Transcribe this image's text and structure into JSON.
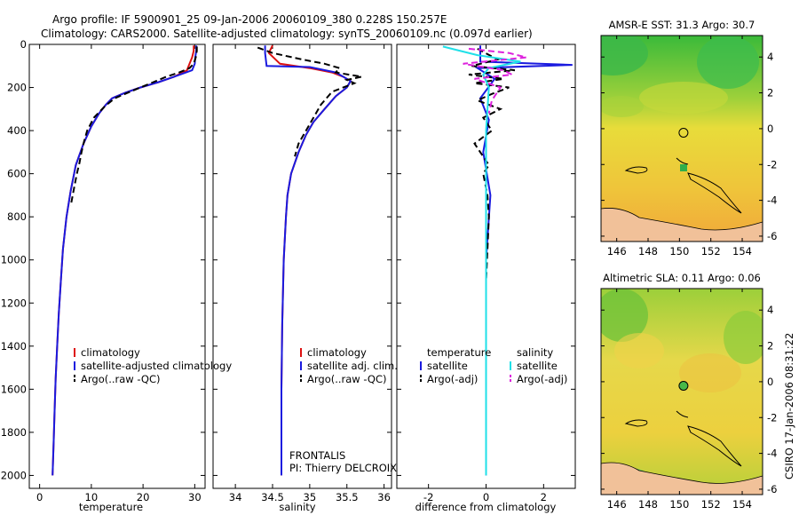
{
  "header": {
    "line1": "Argo profile: IF 5900901_25 09-Jan-2006 20060109_380 0.228S 150.257E",
    "line2": "Climatology: CARS2000. Satellite-adjusted climatology: synTS_20060109.nc (0.097d earlier)"
  },
  "side_stamp": "CSIRO 17-Jan-2006 08:31:22",
  "colors": {
    "climatology": "#dd1111",
    "satellite": "#1a1adf",
    "argo": "#000000",
    "satellite_cyan": "#1fe0e8",
    "argo_adj": "#dd22dd"
  },
  "chart_data": [
    {
      "type": "line",
      "xlabel": "temperature",
      "xlim": [
        -2,
        32
      ],
      "ylim": [
        2060,
        0
      ],
      "xticks": [
        0,
        10,
        20,
        30
      ],
      "xtick_labels": [
        "0",
        "10",
        "20",
        "30"
      ],
      "yticks": [
        0,
        200,
        400,
        600,
        800,
        1000,
        1200,
        1400,
        1600,
        1800,
        2000
      ],
      "ytick_labels": [
        "0",
        "200",
        "400",
        "600",
        "800",
        "1000",
        "1200",
        "1400",
        "1600",
        "1800",
        "2000"
      ],
      "legend": {
        "placement": "lower-middle",
        "entries": [
          "climatology",
          "satellite-adjusted climatology",
          "Argo(..raw -QC)"
        ]
      },
      "series": [
        {
          "name": "climatology",
          "color": "#dd1111",
          "style": "solid",
          "x": [
            29.8,
            29.8,
            29.5,
            29,
            28.5,
            26,
            23,
            19.5,
            16.5,
            14,
            12.8,
            11.5,
            10,
            8.5,
            7,
            6,
            5.2,
            4.5,
            4.1,
            3.7,
            3.4,
            3.1,
            2.9,
            2.7,
            2.5
          ],
          "y": [
            5,
            30,
            60,
            90,
            120,
            150,
            175,
            200,
            225,
            250,
            280,
            320,
            380,
            460,
            560,
            680,
            800,
            950,
            1100,
            1250,
            1400,
            1550,
            1700,
            1850,
            2000
          ]
        },
        {
          "name": "satellite-adjusted climatology",
          "color": "#1a1adf",
          "style": "solid",
          "x": [
            30.3,
            30.3,
            30.1,
            30,
            29.5,
            26,
            23,
            19.5,
            16.5,
            14,
            12.8,
            11.5,
            10,
            8.5,
            7,
            6,
            5.2,
            4.5,
            4.1,
            3.7,
            3.4,
            3.1,
            2.9,
            2.7,
            2.5
          ],
          "y": [
            5,
            30,
            60,
            90,
            120,
            150,
            175,
            200,
            225,
            250,
            280,
            320,
            380,
            460,
            560,
            680,
            800,
            950,
            1100,
            1250,
            1400,
            1550,
            1700,
            1850,
            2000
          ]
        },
        {
          "name": "Argo(..raw -QC)",
          "color": "#000000",
          "style": "dashed",
          "x": [
            30.4,
            30.4,
            30.2,
            29.8,
            29,
            27,
            24.5,
            22,
            19.5,
            17,
            14.5,
            12.5,
            10.5,
            9.2,
            8.6,
            8.1,
            7.7,
            7.2,
            6.8,
            6.4,
            6
          ],
          "y": [
            10,
            30,
            60,
            90,
            110,
            130,
            150,
            175,
            200,
            225,
            250,
            290,
            340,
            400,
            450,
            500,
            550,
            600,
            650,
            700,
            750
          ]
        }
      ]
    },
    {
      "type": "line",
      "xlabel": "salinity",
      "xlim": [
        33.7,
        36.1
      ],
      "ylim": [
        2060,
        0
      ],
      "xticks": [
        34,
        34.5,
        35,
        35.5,
        36
      ],
      "xtick_labels": [
        "34",
        "34.5",
        "35",
        "35.5",
        "36"
      ],
      "legend": {
        "placement": "lower-middle",
        "entries": [
          "climatology",
          "satellite adj. clim.",
          "Argo(..raw -QC)"
        ]
      },
      "annotation": [
        "FRONTALIS",
        "PI: Thierry DELCROIX"
      ],
      "series": [
        {
          "name": "climatology",
          "color": "#dd1111",
          "style": "solid",
          "x": [
            34.5,
            34.45,
            34.6,
            35.0,
            35.3,
            35.45,
            35.55,
            35.5,
            35.35,
            35.2,
            35.05,
            34.95,
            34.85,
            34.75,
            34.7,
            34.68,
            34.65,
            34.63,
            34.62,
            34.62
          ],
          "y": [
            5,
            40,
            90,
            110,
            130,
            150,
            170,
            200,
            240,
            300,
            360,
            420,
            500,
            600,
            700,
            800,
            1000,
            1300,
            1600,
            2000
          ]
        },
        {
          "name": "satellite adj. clim.",
          "color": "#1a1adf",
          "style": "solid",
          "x": [
            34.4,
            34.4,
            34.42,
            35.0,
            35.35,
            35.45,
            35.55,
            35.5,
            35.35,
            35.2,
            35.05,
            34.95,
            34.85,
            34.75,
            34.7,
            34.68,
            34.65,
            34.63,
            34.62,
            34.62
          ],
          "y": [
            5,
            40,
            100,
            105,
            130,
            150,
            170,
            200,
            240,
            300,
            360,
            420,
            500,
            600,
            700,
            800,
            1000,
            1300,
            1600,
            2000
          ]
        },
        {
          "name": "Argo(..raw -QC)",
          "color": "#000000",
          "style": "dashed",
          "x": [
            34.3,
            34.5,
            34.9,
            35.2,
            35.4,
            35.35,
            35.7,
            35.5,
            35.6,
            35.3,
            35.15,
            35.05,
            34.95,
            34.85,
            34.8
          ],
          "y": [
            15,
            40,
            70,
            90,
            110,
            130,
            150,
            165,
            180,
            220,
            280,
            340,
            400,
            460,
            520
          ]
        }
      ]
    },
    {
      "type": "line",
      "xlabel": "difference from climatology",
      "xlim": [
        -3.1,
        3.1
      ],
      "ylim": [
        2060,
        0
      ],
      "xticks": [
        -2,
        0,
        2
      ],
      "xtick_labels": [
        "-2",
        "0",
        "2"
      ],
      "legend": {
        "placement": "lower-middle",
        "headings": [
          "temperature",
          "salinity"
        ],
        "entries": [
          "satellite",
          "Argo(-adj)",
          "satellite",
          "Argo(-adj)"
        ]
      },
      "series": [
        {
          "name": "satellite",
          "color": "#1a1adf",
          "style": "solid",
          "x": [
            -0.2,
            -0.2,
            3.0,
            -0.3,
            0.3,
            -0.2,
            0.1,
            -0.1,
            0.15,
            0.0,
            0.0
          ],
          "y": [
            5,
            80,
            95,
            110,
            160,
            250,
            350,
            500,
            700,
            1000,
            2000
          ]
        },
        {
          "name": "Argo(-adj)",
          "color": "#000000",
          "style": "dashed",
          "x": [
            -0.3,
            0.4,
            -0.5,
            1.0,
            -0.6,
            0.6,
            -0.4,
            0.8,
            0.2,
            -0.3,
            0.5,
            -0.1,
            0.2,
            -0.4,
            -0.2,
            0.1,
            -0.1,
            0.05,
            0.1,
            0.0
          ],
          "y": [
            20,
            70,
            100,
            120,
            140,
            160,
            180,
            200,
            230,
            260,
            300,
            340,
            400,
            460,
            500,
            560,
            600,
            700,
            800,
            1100
          ]
        },
        {
          "name": "satellite",
          "color": "#1fe0e8",
          "style": "solid",
          "x": [
            -1.5,
            -0.3,
            1.2,
            0.1,
            -0.1,
            0.1,
            0.0,
            0.0,
            0.0
          ],
          "y": [
            10,
            50,
            80,
            110,
            140,
            200,
            400,
            700,
            2000
          ]
        },
        {
          "name": "Argo(-adj)",
          "color": "#dd22dd",
          "style": "dashed",
          "x": [
            -0.6,
            0.8,
            1.4,
            -0.8,
            0.6,
            0.9,
            -0.4,
            0.5,
            0.2,
            0.1
          ],
          "y": [
            20,
            40,
            60,
            90,
            120,
            140,
            160,
            200,
            260,
            320
          ]
        }
      ]
    },
    {
      "type": "heatmap",
      "title": "AMSR-E SST: 31.3 Argo: 30.7",
      "xlim": [
        145,
        155.3
      ],
      "ylim": [
        -6.3,
        5.2
      ],
      "xticks": [
        146,
        148,
        150,
        152,
        154
      ],
      "xtick_labels": [
        "146",
        "148",
        "150",
        "152",
        "154"
      ],
      "yticks": [
        4,
        2,
        0,
        -2,
        -4,
        -6
      ],
      "ytick_labels": [
        "4",
        "2",
        "0",
        "-2",
        "-4",
        "-6"
      ],
      "marker": {
        "lon": 150.257,
        "lat": -0.228
      }
    },
    {
      "type": "heatmap",
      "title": "Altimetric SLA: 0.11 Argo: 0.06",
      "xlim": [
        145,
        155.3
      ],
      "ylim": [
        -6.3,
        5.2
      ],
      "xticks": [
        146,
        148,
        150,
        152,
        154
      ],
      "xtick_labels": [
        "146",
        "148",
        "150",
        "152",
        "154"
      ],
      "yticks": [
        4,
        2,
        0,
        -2,
        -4,
        -6
      ],
      "ytick_labels": [
        "4",
        "2",
        "0",
        "-2",
        "-4",
        "-6"
      ],
      "marker": {
        "lon": 150.257,
        "lat": -0.228
      }
    }
  ]
}
